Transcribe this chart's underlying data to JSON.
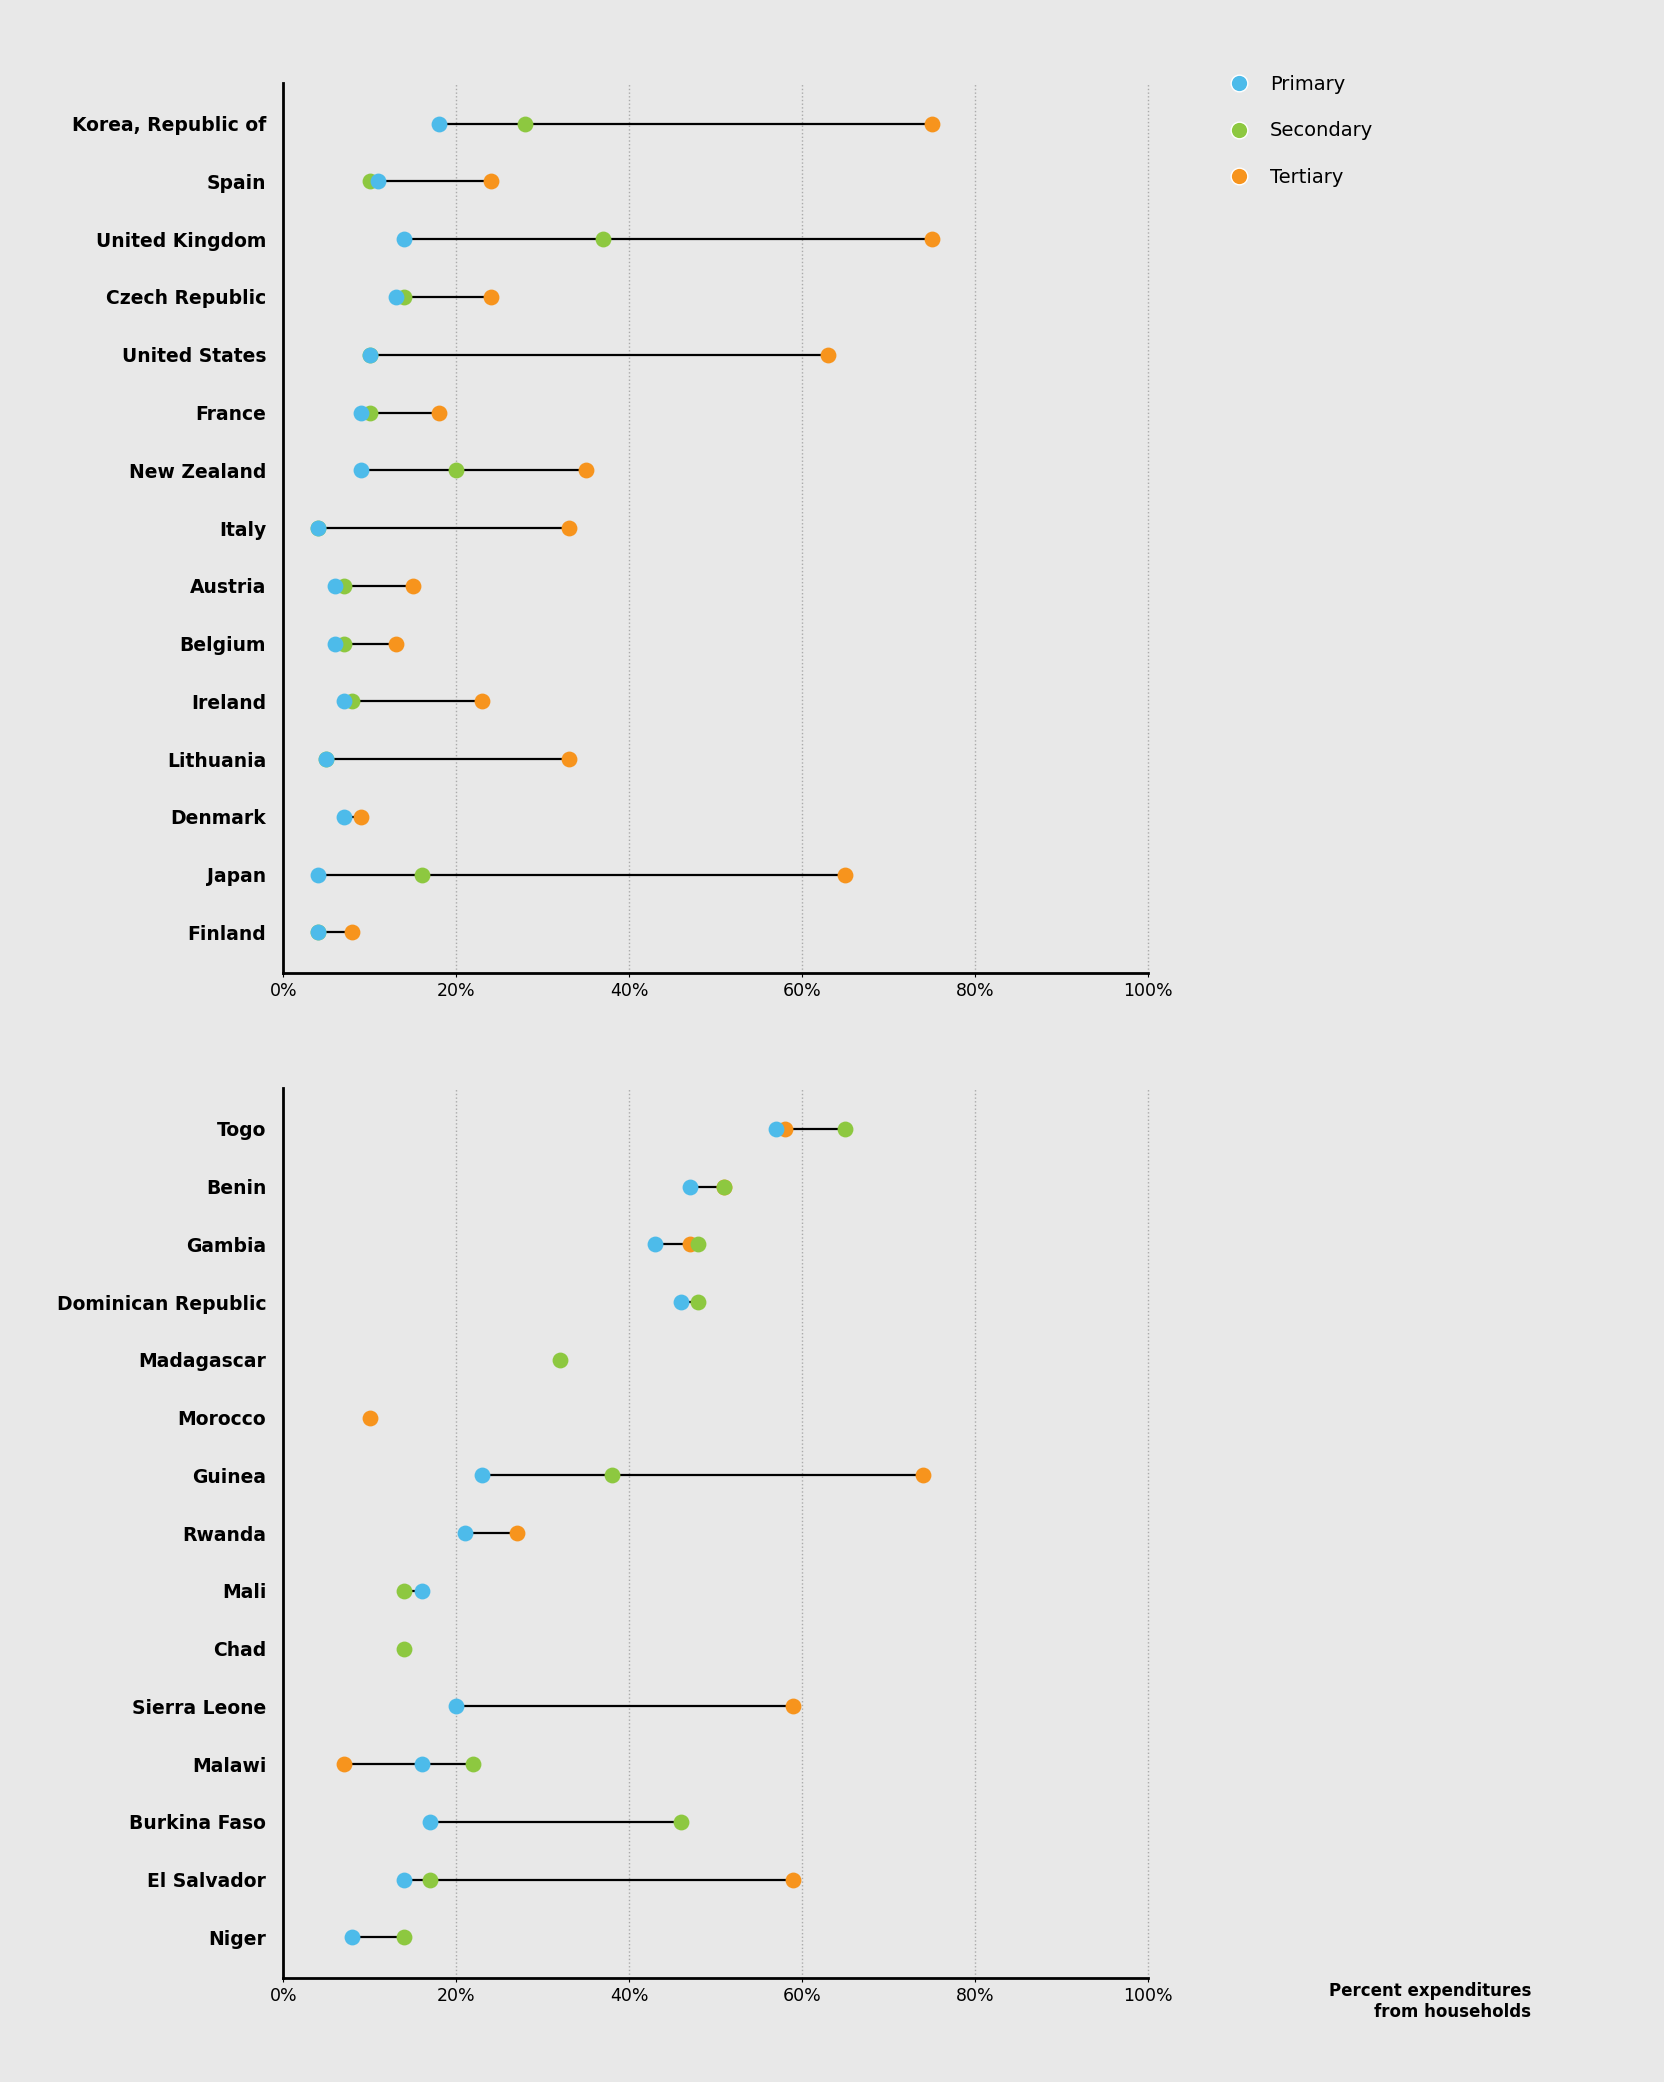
{
  "chart1_countries": [
    "Korea, Republic of",
    "Spain",
    "United Kingdom",
    "Czech Republic",
    "United States",
    "France",
    "New Zealand",
    "Italy",
    "Austria",
    "Belgium",
    "Ireland",
    "Lithuania",
    "Denmark",
    "Japan",
    "Finland"
  ],
  "chart1_primary": [
    18,
    11,
    14,
    13,
    10,
    9,
    9,
    4,
    6,
    6,
    7,
    5,
    7,
    4,
    4
  ],
  "chart1_secondary": [
    28,
    10,
    37,
    14,
    10,
    10,
    20,
    4,
    7,
    7,
    8,
    5,
    null,
    16,
    4
  ],
  "chart1_tertiary": [
    75,
    24,
    75,
    24,
    63,
    18,
    35,
    33,
    15,
    13,
    23,
    33,
    9,
    65,
    8
  ],
  "chart2_countries": [
    "Togo",
    "Benin",
    "Gambia",
    "Dominican Republic",
    "Madagascar",
    "Morocco",
    "Guinea",
    "Rwanda",
    "Mali",
    "Chad",
    "Sierra Leone",
    "Malawi",
    "Burkina Faso",
    "El Salvador",
    "Niger"
  ],
  "chart2_primary": [
    57,
    47,
    43,
    46,
    null,
    null,
    23,
    21,
    16,
    null,
    20,
    16,
    17,
    14,
    8
  ],
  "chart2_secondary": [
    65,
    51,
    48,
    48,
    32,
    null,
    38,
    null,
    14,
    14,
    null,
    22,
    46,
    17,
    14
  ],
  "chart2_tertiary": [
    58,
    51,
    47,
    null,
    null,
    10,
    74,
    27,
    null,
    null,
    59,
    7,
    null,
    59,
    null
  ],
  "primary_color": "#4dbbea",
  "secondary_color": "#8dc840",
  "tertiary_color": "#f7941d",
  "background_color": "#e8e8e8",
  "legend_labels": [
    "Primary",
    "Secondary",
    "Tertiary"
  ]
}
